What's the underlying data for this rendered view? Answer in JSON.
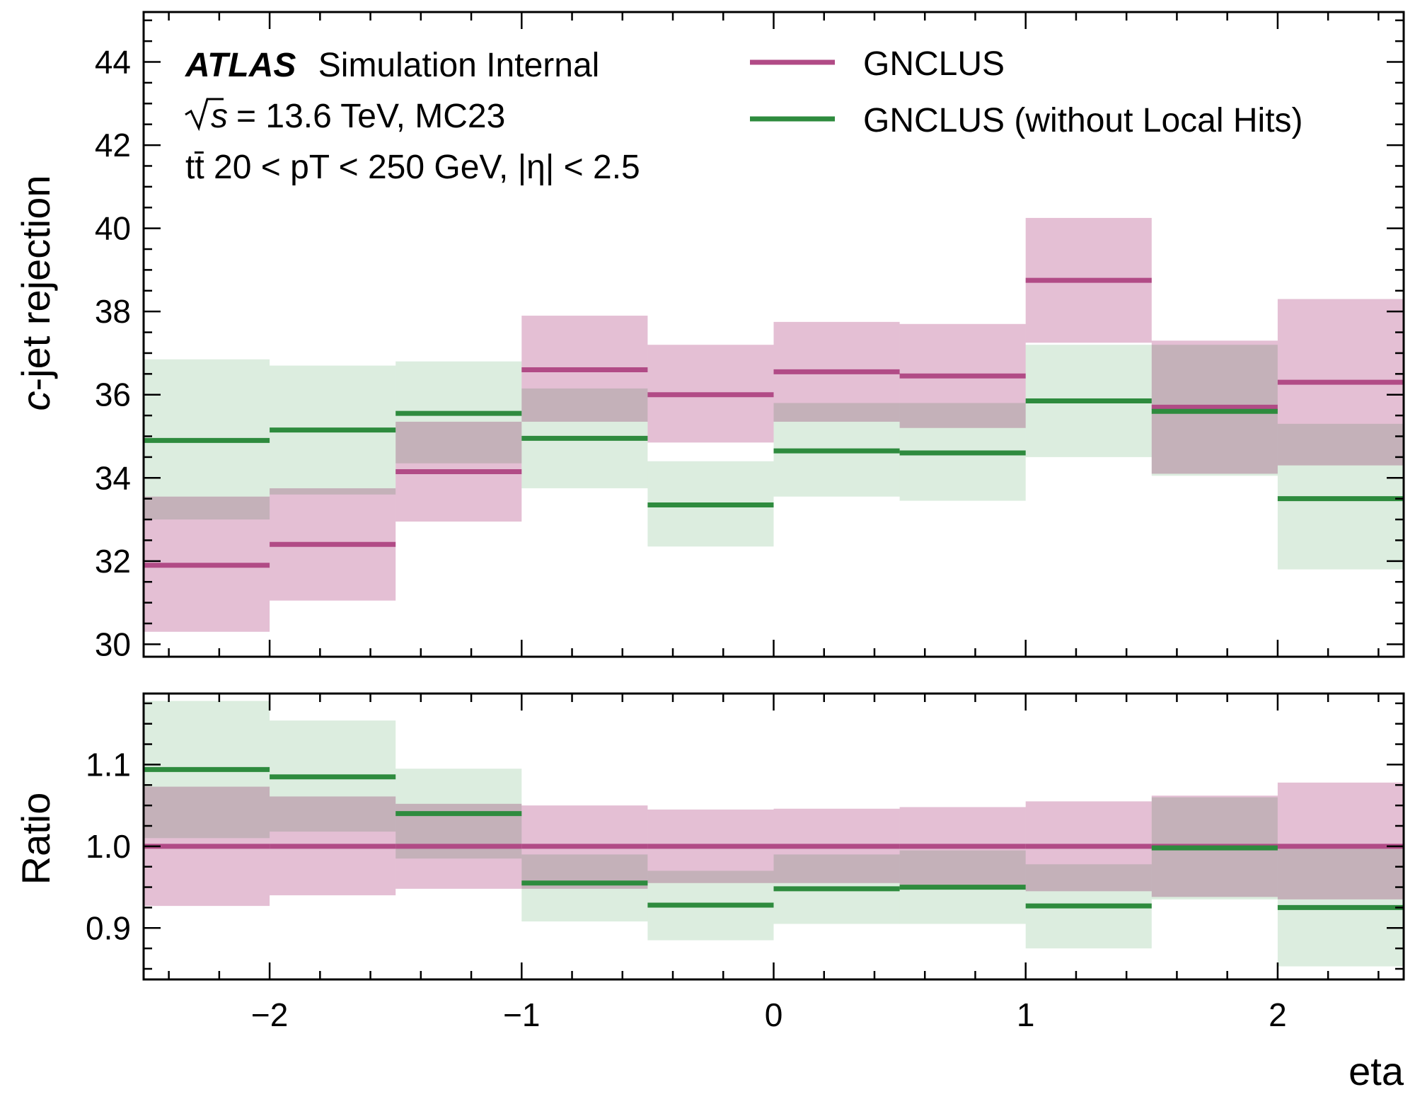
{
  "chart_data": [
    {
      "type": "step",
      "panel": "main",
      "ylabel_prefix": "c",
      "ylabel_rest": "-jet rejection",
      "xlim": [
        -2.5,
        2.5
      ],
      "ylim": [
        29.7,
        45.2
      ],
      "yticks": [
        30,
        32,
        34,
        36,
        38,
        40,
        42,
        44
      ],
      "grid": false,
      "legend_position": "top-right",
      "annotation": {
        "atlas": "ATLAS",
        "atlas_rest": "Simulation Internal",
        "sqrt_s": "s",
        "energy": "= 13.6 TeV, MC23",
        "line3": "tt̄ 20 < pT < 250 GeV, |η| < 2.5"
      },
      "bin_edges": [
        -2.5,
        -2.0,
        -1.5,
        -1.0,
        -0.5,
        0.0,
        0.5,
        1.0,
        1.5,
        2.0,
        2.5
      ],
      "series": [
        {
          "name": "GNCLUS",
          "color": "#b14b86",
          "band_color": "#e4bfd4",
          "values": [
            31.9,
            32.4,
            34.15,
            36.6,
            36.0,
            36.55,
            36.45,
            38.75,
            35.7,
            36.3
          ],
          "band_low": [
            30.3,
            31.05,
            32.95,
            35.35,
            34.85,
            35.35,
            35.2,
            37.25,
            34.1,
            34.3
          ],
          "band_high": [
            33.55,
            33.75,
            35.35,
            37.9,
            37.2,
            37.75,
            37.7,
            40.25,
            37.3,
            38.3
          ]
        },
        {
          "name": "GNCLUS (without Local Hits)",
          "color": "#2e8b3e",
          "band_color": "#bfdfc4",
          "values": [
            34.9,
            35.15,
            35.55,
            34.95,
            33.35,
            34.65,
            34.6,
            35.85,
            35.6,
            33.5
          ],
          "band_low": [
            33.0,
            33.6,
            34.35,
            33.75,
            32.35,
            33.55,
            33.45,
            34.5,
            34.05,
            31.8
          ],
          "band_high": [
            36.85,
            36.7,
            36.8,
            36.15,
            34.4,
            35.8,
            35.8,
            37.2,
            37.2,
            35.3
          ]
        }
      ]
    },
    {
      "type": "step",
      "panel": "ratio",
      "ylabel": "Ratio",
      "xlabel": "eta",
      "xlim": [
        -2.5,
        2.5
      ],
      "ylim": [
        0.837,
        1.187
      ],
      "yticks": [
        0.9,
        1.0,
        1.1
      ],
      "ytick_labels": [
        "0.9",
        "1.0",
        "1.1"
      ],
      "xticks": [
        -2,
        -1,
        0,
        1,
        2
      ],
      "xtick_labels": [
        "−2",
        "−1",
        "0",
        "1",
        "2"
      ],
      "series": [
        {
          "name": "GNCLUS",
          "color": "#b14b86",
          "band_color": "#e4bfd4",
          "values": [
            1.0,
            1.0,
            1.0,
            1.0,
            1.0,
            1.0,
            1.0,
            1.0,
            1.0,
            1.0
          ],
          "band_low": [
            0.927,
            0.94,
            0.948,
            0.948,
            0.955,
            0.955,
            0.952,
            0.945,
            0.938,
            0.935
          ],
          "band_high": [
            1.073,
            1.061,
            1.052,
            1.05,
            1.045,
            1.046,
            1.048,
            1.055,
            1.062,
            1.078
          ]
        },
        {
          "name": "GNCLUS (without Local Hits)",
          "color": "#2e8b3e",
          "band_color": "#bfdfc4",
          "values": [
            1.094,
            1.085,
            1.04,
            0.955,
            0.928,
            0.948,
            0.95,
            0.927,
            0.998,
            0.925
          ],
          "band_low": [
            1.01,
            1.018,
            0.985,
            0.908,
            0.885,
            0.905,
            0.905,
            0.875,
            0.935,
            0.853
          ],
          "band_high": [
            1.178,
            1.154,
            1.095,
            0.99,
            0.97,
            0.99,
            0.995,
            0.978,
            1.06,
            0.997
          ]
        }
      ]
    }
  ]
}
